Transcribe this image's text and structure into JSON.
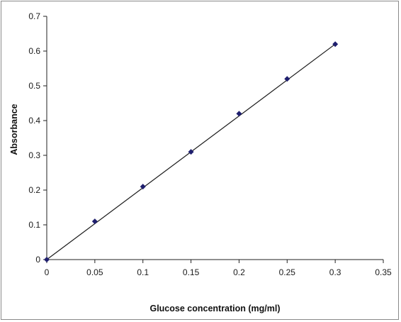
{
  "chart_data": {
    "type": "scatter",
    "title": "",
    "xlabel": "Glucose concentration (mg/ml)",
    "ylabel": "Absorbance",
    "xlim": [
      0,
      0.35
    ],
    "ylim": [
      0,
      0.7
    ],
    "x_ticks": [
      0,
      0.05,
      0.1,
      0.15,
      0.2,
      0.25,
      0.3,
      0.35
    ],
    "y_ticks": [
      0,
      0.1,
      0.2,
      0.3,
      0.4,
      0.5,
      0.6,
      0.7
    ],
    "x_tick_labels": [
      "0",
      "0.05",
      "0.1",
      "0.15",
      "0.2",
      "0.25",
      "0.3",
      "0.35"
    ],
    "y_tick_labels": [
      "0",
      "0.1",
      "0.2",
      "0.3",
      "0.4",
      "0.5",
      "0.6",
      "0.7"
    ],
    "grid": false,
    "legend": "none",
    "series": [
      {
        "x": [
          0,
          0.05,
          0.1,
          0.15,
          0.2,
          0.25,
          0.3
        ],
        "y": [
          0,
          0.11,
          0.21,
          0.31,
          0.42,
          0.52,
          0.62
        ],
        "marker": "diamond",
        "color": "#1f1f6e"
      }
    ],
    "trendline": {
      "type": "linear",
      "x": [
        0,
        0.3
      ],
      "y": [
        0,
        0.62
      ],
      "color": "#1a1a1a"
    }
  }
}
